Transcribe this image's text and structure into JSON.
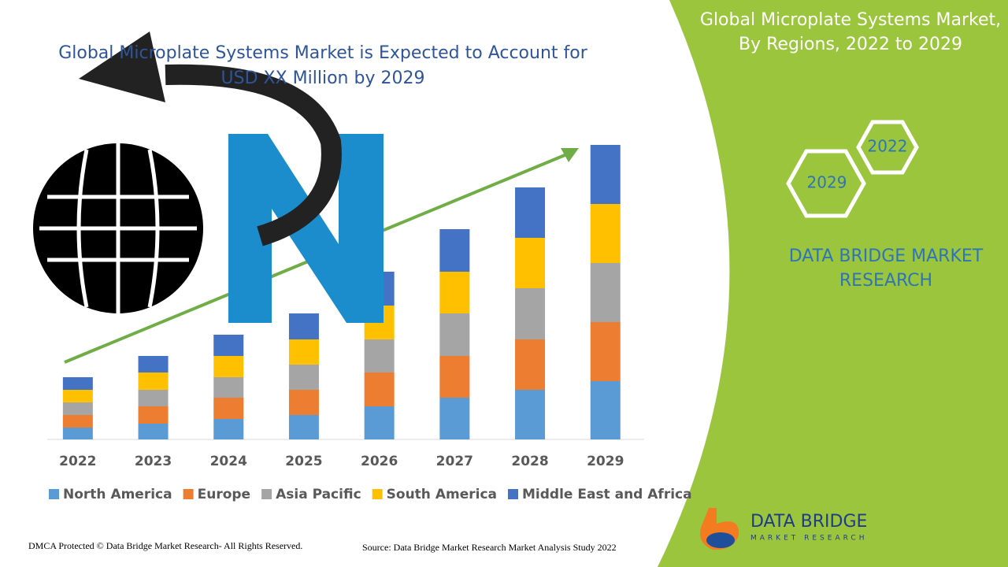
{
  "chart_data": {
    "type": "bar",
    "stacked": true,
    "title": "Global Microplate Systems Market is Expected to Account for USD XX Million by 2029",
    "categories": [
      "2022",
      "2023",
      "2024",
      "2025",
      "2026",
      "2027",
      "2028",
      "2029"
    ],
    "series": [
      {
        "name": "North America",
        "color": "#5b9bd5",
        "values": [
          15,
          20,
          26,
          31,
          42,
          53,
          63,
          74
        ]
      },
      {
        "name": "Europe",
        "color": "#ed7d31",
        "values": [
          16,
          22,
          27,
          32,
          43,
          53,
          64,
          75
        ]
      },
      {
        "name": "Asia Pacific",
        "color": "#a5a5a5",
        "values": [
          16,
          21,
          26,
          32,
          42,
          54,
          65,
          75
        ]
      },
      {
        "name": "South America",
        "color": "#ffc000",
        "values": [
          16,
          22,
          27,
          32,
          43,
          53,
          64,
          75
        ]
      },
      {
        "name": "Middle East and Africa",
        "color": "#4472c4",
        "values": [
          16,
          21,
          27,
          33,
          43,
          54,
          64,
          75
        ]
      }
    ],
    "legend": "bottom"
  },
  "panel": {
    "title": "Global Microplate Systems Market, By Regions, 2022 to 2029",
    "hexagons": [
      "2022",
      "2029"
    ],
    "brand": "DATA BRIDGE MARKET RESEARCH",
    "logo_name": "DATA BRIDGE",
    "logo_sub": "MARKET RESEARCH"
  },
  "footer": {
    "left": "DMCA Protected © Data Bridge Market Research- All Rights Reserved.",
    "right": "Source: Data Bridge Market Research Market Analysis Study 2022"
  }
}
